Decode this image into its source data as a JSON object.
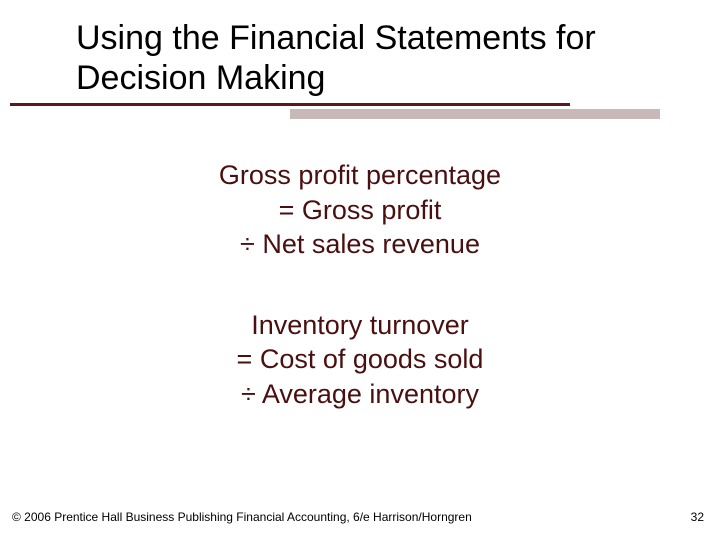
{
  "title": "Using the Financial Statements for Decision Making",
  "formula1": {
    "line1": "Gross profit percentage",
    "line2": "= Gross profit",
    "line3": "÷ Net sales revenue"
  },
  "formula2": {
    "line1": "Inventory turnover",
    "line2": "= Cost of goods sold",
    "line3": "÷ Average inventory"
  },
  "footer": "© 2006 Prentice Hall Business Publishing Financial Accounting, 6/e Harrison/Horngren",
  "page_number": "32",
  "colors": {
    "title_text": "#000000",
    "formula_text": "#4a0f0f",
    "underline_dark": "#5a1a1a",
    "underline_light": "#c8b8b8",
    "background": "#ffffff"
  },
  "typography": {
    "title_fontsize": 34,
    "formula_fontsize": 27,
    "footer_fontsize": 12
  }
}
